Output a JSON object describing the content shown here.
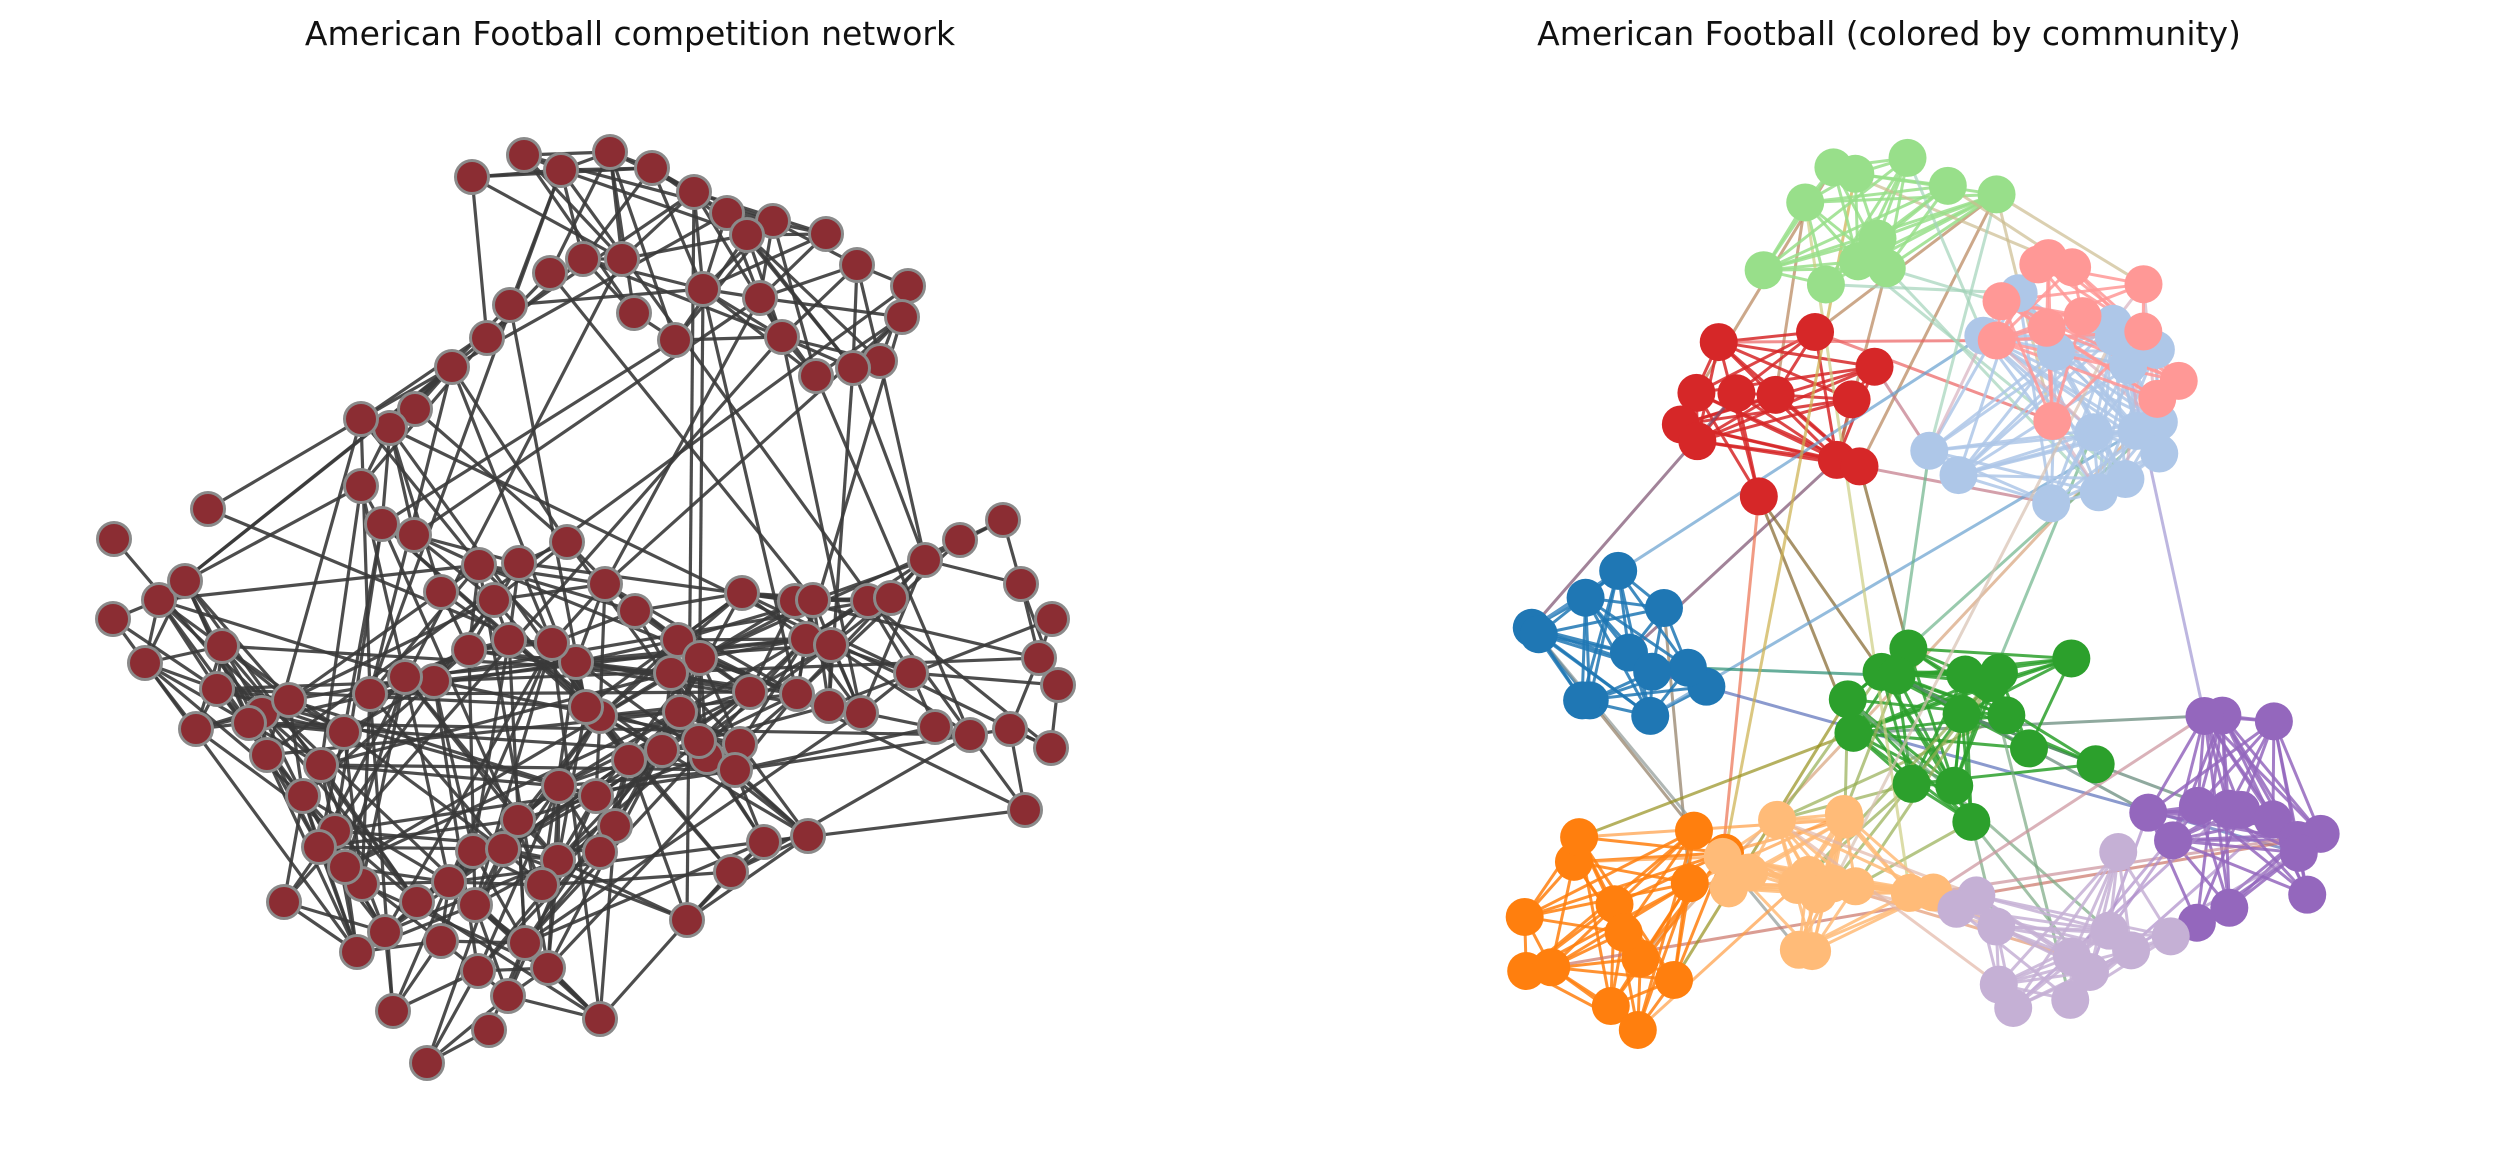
{
  "panels": [
    {
      "title": "American Football competition network",
      "style": "uniform",
      "node_color": "#8b2d33",
      "node_stroke": "#8a8a8a",
      "edge_color": "#3a3a3a"
    },
    {
      "title": "American Football (colored by community)",
      "style": "community",
      "community_colors": [
        "#d62728",
        "#1f77b4",
        "#ff7f0e",
        "#2ca02c",
        "#9467bd",
        "#98df8a",
        "#aec7e8",
        "#ff9896",
        "#ffbb78",
        "#c5b0d5"
      ],
      "community_sizes": [
        12,
        12,
        14,
        16,
        15,
        11,
        16,
        12,
        15,
        12
      ]
    }
  ]
}
